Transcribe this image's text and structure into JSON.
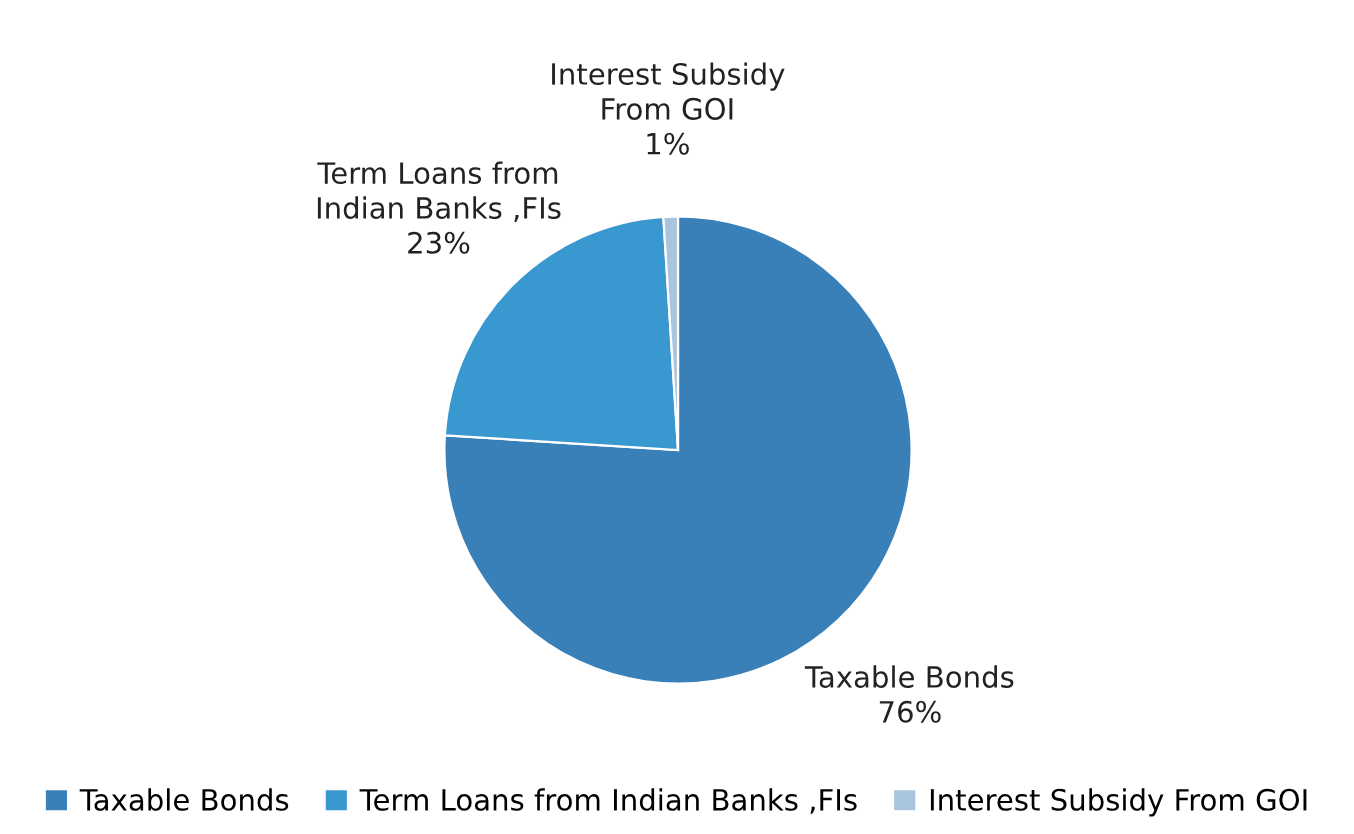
{
  "chart_data": {
    "type": "pie",
    "categories": [
      "Taxable Bonds",
      "Term Loans from Indian Banks ,FIs",
      "Interest Subsidy From GOI"
    ],
    "values": [
      76,
      23,
      1
    ],
    "colors": [
      "#3a80b8",
      "#3a98d0",
      "#a8c4de"
    ],
    "value_labels": [
      "76%",
      "23%",
      "1%"
    ],
    "legend": "bottom"
  }
}
